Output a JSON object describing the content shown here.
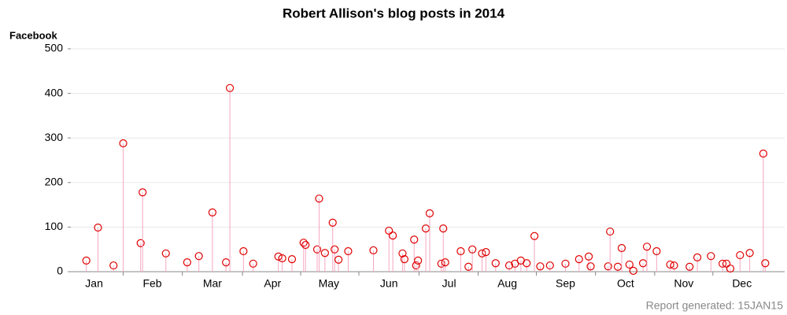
{
  "chart_data": {
    "type": "needle",
    "title": "Robert Allison's blog posts in 2014",
    "y_label": "Facebook",
    "footnote": "Report generated: 15JAN15",
    "series": [
      {
        "name": "Facebook",
        "color": "#e00000",
        "stem_color": "#f4a8c0",
        "x": [
          7,
          13,
          21,
          26,
          35,
          36,
          48,
          59,
          65,
          72,
          79,
          81,
          88,
          93,
          106,
          108,
          113,
          119,
          120,
          126,
          127,
          130,
          134,
          135,
          137,
          142,
          155,
          163,
          165,
          170,
          171,
          176,
          177,
          178,
          182,
          184,
          190,
          191,
          192,
          200,
          204,
          206,
          211,
          213,
          218,
          225,
          228,
          231,
          234,
          238,
          241,
          246,
          254,
          261,
          266,
          267,
          276,
          277,
          281,
          283,
          287,
          289,
          294,
          296,
          301,
          308,
          310,
          318,
          322,
          329,
          335,
          337,
          339,
          344,
          349,
          356,
          357
        ],
        "values": [
          25,
          99,
          14,
          288,
          64,
          178,
          41,
          21,
          35,
          133,
          21,
          412,
          46,
          18,
          34,
          30,
          28,
          65,
          60,
          50,
          164,
          42,
          110,
          50,
          27,
          46,
          48,
          92,
          81,
          41,
          28,
          72,
          14,
          25,
          97,
          131,
          18,
          97,
          21,
          46,
          11,
          50,
          41,
          44,
          19,
          14,
          18,
          25,
          19,
          80,
          12,
          14,
          18,
          28,
          34,
          12,
          12,
          90,
          11,
          53,
          16,
          2,
          19,
          56,
          46,
          16,
          14,
          11,
          32,
          35,
          18,
          18,
          7,
          37,
          42,
          265,
          19
        ]
      }
    ],
    "xlim": [
      -1,
      367
    ],
    "xticks": [
      {
        "value": 11,
        "label": "Jan"
      },
      {
        "value": 41,
        "label": "Feb"
      },
      {
        "value": 72,
        "label": "Mar"
      },
      {
        "value": 103,
        "label": "Apr"
      },
      {
        "value": 132,
        "label": "May"
      },
      {
        "value": 163,
        "label": "Jun"
      },
      {
        "value": 194,
        "label": "Jul"
      },
      {
        "value": 224,
        "label": "Aug"
      },
      {
        "value": 254,
        "label": "Sep"
      },
      {
        "value": 285,
        "label": "Oct"
      },
      {
        "value": 315,
        "label": "Nov"
      },
      {
        "value": 345,
        "label": "Dec"
      }
    ],
    "ylim": [
      0,
      500
    ],
    "yticks": [
      0,
      100,
      200,
      300,
      400,
      500
    ],
    "grid": true
  }
}
